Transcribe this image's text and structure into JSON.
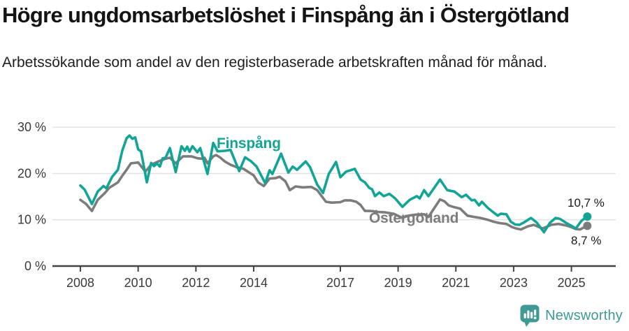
{
  "title": "Högre ungdomsarbetslöshet i Finspång än i Östergötland",
  "subtitle": "Arbetssökande som andel av den registerbaserade arbetskraften månad för månad.",
  "chart_data": {
    "type": "line",
    "title": "Högre ungdomsarbetslöshet i Finspång än i Östergötland",
    "subtitle": "Arbetssökande som andel av den registerbaserade arbetskraften månad för månad.",
    "unit": "%",
    "grid": true,
    "legend_position": "inline-labels",
    "ylim": [
      0,
      30
    ],
    "xlim": [
      2007.0,
      2026.5
    ],
    "y_ticks": [
      {
        "value": 0,
        "label": "0 %"
      },
      {
        "value": 10,
        "label": "10 %"
      },
      {
        "value": 20,
        "label": "20 %"
      },
      {
        "value": 30,
        "label": "30 %"
      }
    ],
    "x_ticks": [
      {
        "year": 2008,
        "label": "2008"
      },
      {
        "year": 2010,
        "label": "2010"
      },
      {
        "year": 2012,
        "label": "2012"
      },
      {
        "year": 2014,
        "label": "2014"
      },
      {
        "year": 2017,
        "label": "2017"
      },
      {
        "year": 2019,
        "label": "2019"
      },
      {
        "year": 2021,
        "label": "2021"
      },
      {
        "year": 2023,
        "label": "2023"
      },
      {
        "year": 2025,
        "label": "2025"
      }
    ],
    "series": [
      {
        "name": "Finspång",
        "color": "#12A495",
        "end_label": "10,7 %",
        "end_value": 10.7,
        "points": [
          [
            2008.0,
            17.4
          ],
          [
            2008.15,
            16.5
          ],
          [
            2008.4,
            13.4
          ],
          [
            2008.6,
            16.1
          ],
          [
            2008.8,
            17.3
          ],
          [
            2008.9,
            16.8
          ],
          [
            2009.1,
            19.3
          ],
          [
            2009.3,
            20.8
          ],
          [
            2009.45,
            24.9
          ],
          [
            2009.6,
            27.6
          ],
          [
            2009.7,
            28.2
          ],
          [
            2009.8,
            27.5
          ],
          [
            2009.9,
            27.8
          ],
          [
            2010.0,
            25.2
          ],
          [
            2010.1,
            24.8
          ],
          [
            2010.3,
            18.1
          ],
          [
            2010.45,
            22.3
          ],
          [
            2010.55,
            21.6
          ],
          [
            2010.65,
            22.2
          ],
          [
            2010.75,
            21.5
          ],
          [
            2010.85,
            23.3
          ],
          [
            2010.95,
            23.4
          ],
          [
            2011.1,
            25.5
          ],
          [
            2011.3,
            20.3
          ],
          [
            2011.5,
            25.9
          ],
          [
            2011.62,
            24.9
          ],
          [
            2011.7,
            25.8
          ],
          [
            2011.78,
            24.7
          ],
          [
            2011.88,
            25.9
          ],
          [
            2012.05,
            24.6
          ],
          [
            2012.15,
            25.5
          ],
          [
            2012.4,
            19.9
          ],
          [
            2012.6,
            26.6
          ],
          [
            2012.75,
            24.8
          ],
          [
            2013.0,
            24.9
          ],
          [
            2013.2,
            25.1
          ],
          [
            2013.5,
            20.5
          ],
          [
            2013.7,
            23.5
          ],
          [
            2013.9,
            22.7
          ],
          [
            2014.1,
            21.5
          ],
          [
            2014.4,
            17.9
          ],
          [
            2014.55,
            20.7
          ],
          [
            2014.65,
            19.9
          ],
          [
            2014.95,
            24.3
          ],
          [
            2015.2,
            20.2
          ],
          [
            2015.35,
            21.5
          ],
          [
            2015.5,
            20.8
          ],
          [
            2015.8,
            22.6
          ],
          [
            2015.95,
            21.4
          ],
          [
            2016.2,
            17.6
          ],
          [
            2016.4,
            15.8
          ],
          [
            2016.6,
            19.9
          ],
          [
            2016.85,
            22.5
          ],
          [
            2017.0,
            19.2
          ],
          [
            2017.2,
            20.4
          ],
          [
            2017.5,
            21.0
          ],
          [
            2017.7,
            18.7
          ],
          [
            2017.85,
            18.1
          ],
          [
            2018.0,
            16.9
          ],
          [
            2018.1,
            16.6
          ],
          [
            2018.2,
            15.1
          ],
          [
            2018.35,
            15.9
          ],
          [
            2018.5,
            15.1
          ],
          [
            2018.7,
            15.6
          ],
          [
            2018.9,
            14.6
          ],
          [
            2019.15,
            12.8
          ],
          [
            2019.4,
            14.3
          ],
          [
            2019.65,
            15.1
          ],
          [
            2019.75,
            14.6
          ],
          [
            2019.9,
            16.4
          ],
          [
            2020.05,
            15.1
          ],
          [
            2020.45,
            18.7
          ],
          [
            2020.7,
            16.4
          ],
          [
            2020.95,
            16.1
          ],
          [
            2021.2,
            14.9
          ],
          [
            2021.35,
            15.4
          ],
          [
            2021.55,
            14.2
          ],
          [
            2021.65,
            14.3
          ],
          [
            2021.8,
            13.1
          ],
          [
            2021.9,
            13.9
          ],
          [
            2022.1,
            12.6
          ],
          [
            2022.3,
            11.6
          ],
          [
            2022.45,
            10.9
          ],
          [
            2022.55,
            11.3
          ],
          [
            2022.75,
            11.2
          ],
          [
            2022.9,
            9.6
          ],
          [
            2023.05,
            9.0
          ],
          [
            2023.2,
            8.9
          ],
          [
            2023.35,
            9.4
          ],
          [
            2023.6,
            10.4
          ],
          [
            2023.8,
            9.4
          ],
          [
            2024.05,
            7.3
          ],
          [
            2024.25,
            9.3
          ],
          [
            2024.45,
            10.4
          ],
          [
            2024.6,
            10.2
          ],
          [
            2024.85,
            9.2
          ],
          [
            2025.0,
            8.7
          ],
          [
            2025.15,
            8.1
          ],
          [
            2025.35,
            9.8
          ],
          [
            2025.55,
            10.7
          ]
        ]
      },
      {
        "name": "Östergötland",
        "color": "#7C7C7C",
        "end_label": "8,7 %",
        "end_value": 8.7,
        "points": [
          [
            2008.0,
            14.3
          ],
          [
            2008.2,
            13.4
          ],
          [
            2008.4,
            11.9
          ],
          [
            2008.6,
            14.3
          ],
          [
            2008.85,
            15.8
          ],
          [
            2009.0,
            16.9
          ],
          [
            2009.3,
            18.1
          ],
          [
            2009.45,
            19.5
          ],
          [
            2009.6,
            20.8
          ],
          [
            2009.75,
            22.2
          ],
          [
            2010.0,
            22.4
          ],
          [
            2010.25,
            20.4
          ],
          [
            2010.45,
            21.9
          ],
          [
            2010.7,
            22.6
          ],
          [
            2010.95,
            23.2
          ],
          [
            2011.1,
            23.4
          ],
          [
            2011.3,
            22.2
          ],
          [
            2011.55,
            23.7
          ],
          [
            2011.85,
            23.7
          ],
          [
            2012.05,
            23.3
          ],
          [
            2012.2,
            23.2
          ],
          [
            2012.3,
            23.4
          ],
          [
            2012.4,
            22.2
          ],
          [
            2012.6,
            23.7
          ],
          [
            2012.7,
            24.0
          ],
          [
            2012.85,
            23.4
          ],
          [
            2013.0,
            22.6
          ],
          [
            2013.2,
            21.9
          ],
          [
            2013.4,
            21.4
          ],
          [
            2013.65,
            21.0
          ],
          [
            2013.8,
            20.4
          ],
          [
            2014.0,
            19.6
          ],
          [
            2014.15,
            18.1
          ],
          [
            2014.35,
            17.3
          ],
          [
            2014.55,
            18.9
          ],
          [
            2014.75,
            19.0
          ],
          [
            2014.9,
            19.3
          ],
          [
            2015.1,
            18.3
          ],
          [
            2015.25,
            16.4
          ],
          [
            2015.45,
            17.2
          ],
          [
            2015.7,
            17.0
          ],
          [
            2016.0,
            17.1
          ],
          [
            2016.2,
            16.4
          ],
          [
            2016.5,
            13.9
          ],
          [
            2016.7,
            13.7
          ],
          [
            2017.0,
            13.8
          ],
          [
            2017.15,
            14.2
          ],
          [
            2017.35,
            14.2
          ],
          [
            2017.55,
            13.9
          ],
          [
            2017.7,
            13.2
          ],
          [
            2017.85,
            11.9
          ],
          [
            2018.05,
            11.9
          ],
          [
            2018.3,
            11.7
          ],
          [
            2018.55,
            11.6
          ],
          [
            2018.85,
            11.3
          ],
          [
            2019.15,
            10.4
          ],
          [
            2019.35,
            10.9
          ],
          [
            2019.6,
            11.1
          ],
          [
            2019.9,
            11.2
          ],
          [
            2020.05,
            10.6
          ],
          [
            2020.45,
            14.4
          ],
          [
            2020.6,
            14.0
          ],
          [
            2020.75,
            13.1
          ],
          [
            2020.95,
            12.7
          ],
          [
            2021.15,
            12.4
          ],
          [
            2021.4,
            10.9
          ],
          [
            2021.65,
            10.6
          ],
          [
            2021.85,
            10.4
          ],
          [
            2022.1,
            10.0
          ],
          [
            2022.3,
            9.6
          ],
          [
            2022.5,
            9.3
          ],
          [
            2022.75,
            9.1
          ],
          [
            2022.95,
            8.4
          ],
          [
            2023.1,
            8.1
          ],
          [
            2023.25,
            7.9
          ],
          [
            2023.5,
            8.6
          ],
          [
            2023.7,
            8.9
          ],
          [
            2024.0,
            8.1
          ],
          [
            2024.3,
            8.9
          ],
          [
            2024.55,
            9.1
          ],
          [
            2024.8,
            8.8
          ],
          [
            2025.0,
            8.4
          ],
          [
            2025.15,
            8.0
          ],
          [
            2025.3,
            7.9
          ],
          [
            2025.45,
            8.4
          ],
          [
            2025.55,
            8.7
          ]
        ]
      }
    ]
  },
  "colors": {
    "finspang": "#12A495",
    "ostergotland": "#7C7C7C",
    "axis": "#444444",
    "grid": "#E0E0E0",
    "tick_text": "#3A3A3A",
    "brand": "#3E9A93"
  },
  "footer": {
    "brand": "Newsworthy"
  }
}
